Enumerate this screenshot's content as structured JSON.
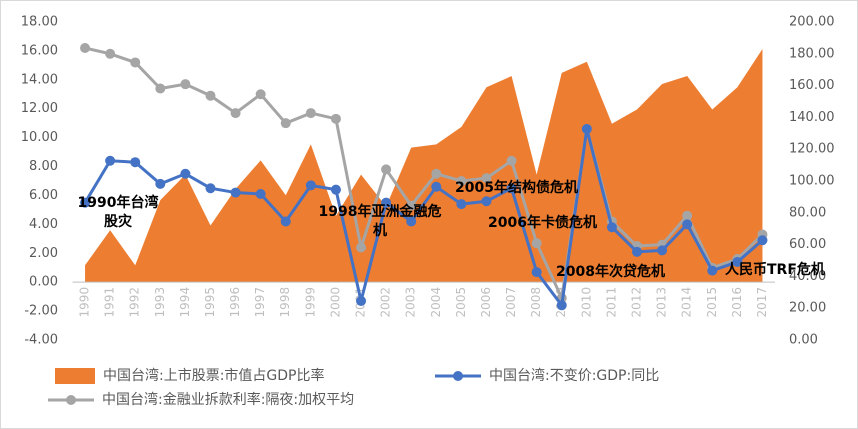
{
  "chart_data": {
    "type": "combo",
    "categories": [
      "1990",
      "1991",
      "1992",
      "1993",
      "1994",
      "1995",
      "1996",
      "1997",
      "1998",
      "1999",
      "2000",
      "2001",
      "2002",
      "2003",
      "2004",
      "2005",
      "2006",
      "2007",
      "2008",
      "2009",
      "2010",
      "2011",
      "2012",
      "2013",
      "2014",
      "2015",
      "2016",
      "2017"
    ],
    "series": [
      {
        "name": "中国台湾:上市股票:市值占GDP比率",
        "type": "area",
        "axis": "y2",
        "color": "#ed7d31",
        "values": [
          47,
          69,
          47,
          88,
          104,
          72,
          95,
          113,
          91,
          123,
          78,
          104,
          84,
          121,
          123,
          134,
          159,
          166,
          104,
          168,
          175,
          136,
          145,
          161,
          166,
          145,
          159,
          183
        ]
      },
      {
        "name": "中国台湾:不变价:GDP:同比",
        "type": "line",
        "color": "#4472c4",
        "values": [
          5.5,
          8.4,
          8.3,
          6.8,
          7.5,
          6.5,
          6.2,
          6.1,
          4.2,
          6.7,
          6.4,
          -1.3,
          5.5,
          4.2,
          6.6,
          5.4,
          5.6,
          6.5,
          0.7,
          -1.6,
          10.6,
          3.8,
          2.1,
          2.2,
          4.0,
          0.8,
          1.4,
          2.9
        ]
      },
      {
        "name": "中国台湾:金融业拆款利率:隔夜:加权平均",
        "type": "line",
        "color": "#a5a5a5",
        "values": [
          16.2,
          15.8,
          15.2,
          13.4,
          13.7,
          12.9,
          11.7,
          13.0,
          11.0,
          11.7,
          11.3,
          2.4,
          7.8,
          5.3,
          7.5,
          7.0,
          7.2,
          8.4,
          2.7,
          -1.1,
          10.6,
          4.2,
          2.5,
          2.6,
          4.6,
          1.0,
          1.6,
          3.3
        ]
      }
    ],
    "ylim": [
      -4,
      18
    ],
    "yticks": [
      {
        "value": -4,
        "label": "-4.00"
      },
      {
        "value": -2,
        "label": "-2.00"
      },
      {
        "value": 0,
        "label": "0.00"
      },
      {
        "value": 2,
        "label": "2.00"
      },
      {
        "value": 4,
        "label": "4.00"
      },
      {
        "value": 6,
        "label": "6.00"
      },
      {
        "value": 8,
        "label": "8.00"
      },
      {
        "value": 10,
        "label": "10.00"
      },
      {
        "value": 12,
        "label": "12.00"
      },
      {
        "value": 14,
        "label": "14.00"
      },
      {
        "value": 16,
        "label": "16.00"
      },
      {
        "value": 18,
        "label": "18.00"
      }
    ],
    "y2lim": [
      0,
      200
    ],
    "y2ticks": [
      {
        "value": 0,
        "label": "0.00"
      },
      {
        "value": 20,
        "label": "20.00"
      },
      {
        "value": 40,
        "label": "40.00"
      },
      {
        "value": 60,
        "label": "60.00"
      },
      {
        "value": 80,
        "label": "80.00"
      },
      {
        "value": 100,
        "label": "100.00"
      },
      {
        "value": 120,
        "label": "120.00"
      },
      {
        "value": 140,
        "label": "140.00"
      },
      {
        "value": 160,
        "label": "160.00"
      },
      {
        "value": 180,
        "label": "180.00"
      },
      {
        "value": 200,
        "label": "200.00"
      }
    ],
    "annotations": [
      [
        "1990年台湾",
        "股灾"
      ],
      [
        "1998年亚洲金融危",
        "机"
      ],
      [
        "2005年结构债危机"
      ],
      [
        "2006年卡债危机"
      ],
      [
        "2008年次贷危机"
      ],
      [
        "人民币TRF危机"
      ]
    ]
  }
}
